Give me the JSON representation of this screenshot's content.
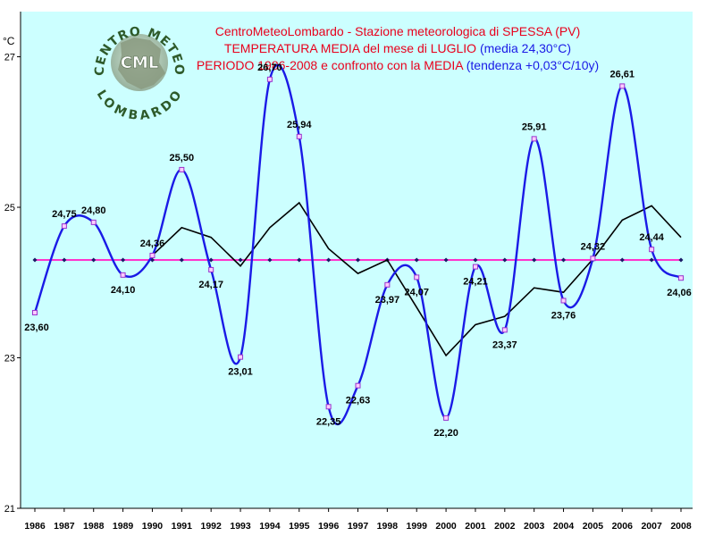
{
  "logo": {
    "text_top": "CENTRO METEO",
    "text_bottom": "LOMBARDO",
    "monogram": "CML"
  },
  "chart_data": {
    "type": "line",
    "title_parts": [
      {
        "text": "CentroMeteoLombardo - Stazione meteorologica di SPESSA (PV)",
        "color": "#e8001c"
      },
      {
        "text": "TEMPERATURA MEDIA del mese di LUGLIO",
        "color": "#e8001c"
      },
      {
        "text": "(media 24,30°C)",
        "color": "#1a1ae6"
      },
      {
        "text": "PERIODO 1986-2008 e confronto con la MEDIA",
        "color": "#e8001c"
      },
      {
        "text": "(tendenza +0,03°C/10y)",
        "color": "#1a1ae6"
      }
    ],
    "ylabel": "°C",
    "ylim": [
      21,
      27.6
    ],
    "yticks": [
      "21",
      "23",
      "25",
      "27"
    ],
    "ytick_values": [
      21,
      23,
      25,
      27
    ],
    "x": [
      "1986",
      "1987",
      "1988",
      "1989",
      "1990",
      "1991",
      "1992",
      "1993",
      "1994",
      "1995",
      "1996",
      "1997",
      "1998",
      "1999",
      "2000",
      "2001",
      "2002",
      "2003",
      "2004",
      "2005",
      "2006",
      "2007",
      "2008"
    ],
    "grid": false,
    "legend": "none",
    "series": [
      {
        "key": "temperature",
        "color": "#1a1ae6",
        "values": [
          23.6,
          24.75,
          24.8,
          24.1,
          24.36,
          25.5,
          24.17,
          23.01,
          26.7,
          25.94,
          22.35,
          22.63,
          23.97,
          24.07,
          22.2,
          24.21,
          23.37,
          25.91,
          23.76,
          24.32,
          26.61,
          24.44,
          24.06
        ],
        "labels": [
          "23,60",
          "24,75",
          "24,80",
          "24,10",
          "24,36",
          "25,50",
          "24,17",
          "23,01",
          "26,70",
          "25,94",
          "22,35",
          "22,63",
          "23,97",
          "24,07",
          "22,20",
          "24,21",
          "23,37",
          "25,91",
          "23,76",
          "24,32",
          "26,61",
          "24,44",
          "24,06"
        ]
      },
      {
        "key": "mean",
        "color": "#ff33cc",
        "values": [
          24.3,
          24.3,
          24.3,
          24.3,
          24.3,
          24.3,
          24.3,
          24.3,
          24.3,
          24.3,
          24.3,
          24.3,
          24.3,
          24.3,
          24.3,
          24.3,
          24.3,
          24.3,
          24.3,
          24.3,
          24.3,
          24.3,
          24.3
        ]
      },
      {
        "key": "moving-average",
        "color": "#000000",
        "values": [
          null,
          null,
          null,
          null,
          24.36,
          24.73,
          24.6,
          24.22,
          24.73,
          25.06,
          24.45,
          24.12,
          24.3,
          23.67,
          23.03,
          23.44,
          23.55,
          23.93,
          23.87,
          24.31,
          24.83,
          25.02,
          24.6
        ]
      }
    ]
  }
}
